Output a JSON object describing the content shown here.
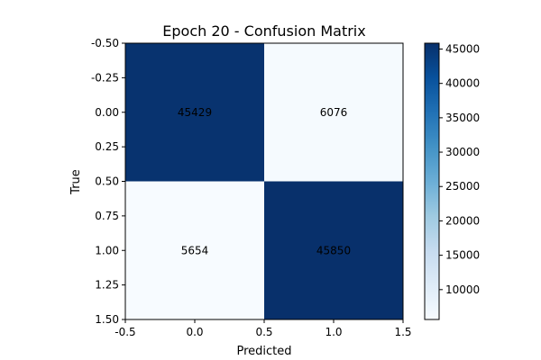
{
  "chart_data": {
    "type": "heatmap",
    "title": "Epoch 20 - Confusion Matrix",
    "xlabel": "Predicted",
    "ylabel": "True",
    "rows": [
      0,
      1
    ],
    "cols": [
      0,
      1
    ],
    "values": [
      [
        45429,
        6076
      ],
      [
        5654,
        45850
      ]
    ],
    "xlim": [
      -0.5,
      1.5
    ],
    "ylim": [
      -0.5,
      1.5
    ],
    "x_ticks": [
      "-0.5",
      "0.0",
      "0.5",
      "1.0",
      "1.5"
    ],
    "y_ticks": [
      "-0.50",
      "-0.25",
      "0.00",
      "0.25",
      "0.50",
      "0.75",
      "1.00",
      "1.25",
      "1.50"
    ],
    "colorbar": {
      "colormap": "Blues",
      "min": 5654,
      "max": 45850,
      "ticks": [
        "10000",
        "15000",
        "20000",
        "25000",
        "30000",
        "35000",
        "40000",
        "45000"
      ]
    },
    "grid": false
  }
}
